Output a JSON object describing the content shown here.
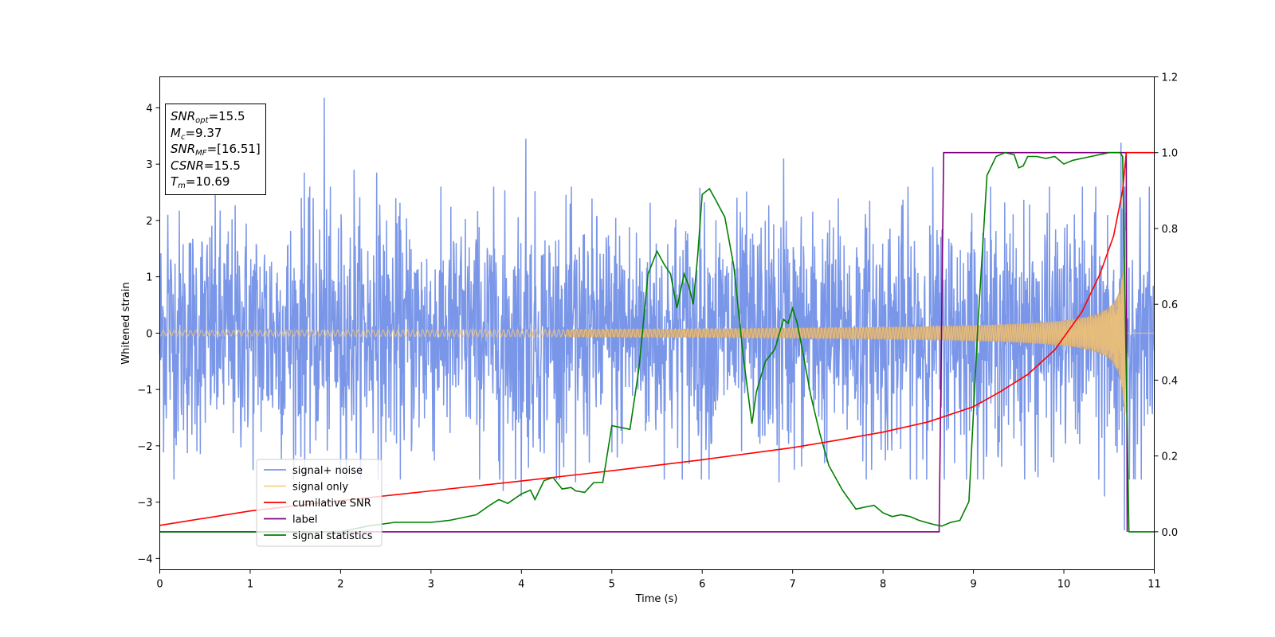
{
  "chart_data": {
    "type": "line",
    "xlabel": "Time (s)",
    "ylabel": "Whitened strain",
    "xlim": [
      0,
      11
    ],
    "ylim": [
      -4.2,
      4.55
    ],
    "y2lim": [
      -0.1,
      1.2
    ],
    "xticks": [
      0,
      1,
      2,
      3,
      4,
      5,
      6,
      7,
      8,
      9,
      10,
      11
    ],
    "yticks": [
      -4,
      -3,
      -2,
      -1,
      0,
      1,
      2,
      3,
      4
    ],
    "y2ticks": [
      "0.0",
      "0.2",
      "0.4",
      "0.6",
      "0.8",
      "1.0",
      "1.2"
    ],
    "legend_position": "lower-left",
    "colors": {
      "noise": "#6b8be6",
      "signal": "#f5c676",
      "csnr": "#ff0000",
      "label": "#800080",
      "stats": "#008000"
    },
    "series": [
      {
        "name": "signal+ noise",
        "axis": "left",
        "kind": "random-noise",
        "envelope": 1.0,
        "peaks": [
          {
            "x": 0.09,
            "y": -2.7
          },
          {
            "x": 0.09,
            "y": 2.1
          },
          {
            "x": 1.82,
            "y": 4.18
          },
          {
            "x": 1.6,
            "y": 2.85
          },
          {
            "x": 2.0,
            "y": -2.5
          },
          {
            "x": 2.15,
            "y": 2.9
          },
          {
            "x": 2.4,
            "y": 2.85
          },
          {
            "x": 3.8,
            "y": -2.8
          },
          {
            "x": 4.05,
            "y": 3.45
          },
          {
            "x": 4.0,
            "y": -2.9
          },
          {
            "x": 4.6,
            "y": -2.65
          },
          {
            "x": 6.9,
            "y": 3.1
          },
          {
            "x": 6.85,
            "y": -2.65
          },
          {
            "x": 8.55,
            "y": 2.95
          },
          {
            "x": 10.45,
            "y": -2.9
          },
          {
            "x": 10.63,
            "y": 3.38
          },
          {
            "x": 10.67,
            "y": -3.5
          }
        ]
      },
      {
        "name": "signal only",
        "axis": "left",
        "kind": "chirp",
        "coalescence_time": 10.69,
        "amplitude_start": 0.05,
        "amplitude_peak": 1.6
      },
      {
        "name": "cumilative SNR",
        "axis": "right",
        "x": [
          0,
          1,
          2,
          3,
          4,
          5,
          6,
          7,
          7.5,
          8,
          8.5,
          9,
          9.3,
          9.6,
          9.9,
          10.2,
          10.4,
          10.55,
          10.65,
          10.69,
          11
        ],
        "y": [
          0.017,
          0.055,
          0.082,
          0.108,
          0.134,
          0.161,
          0.19,
          0.222,
          0.242,
          0.263,
          0.29,
          0.33,
          0.37,
          0.415,
          0.48,
          0.58,
          0.68,
          0.78,
          0.9,
          1.0,
          1.0
        ]
      },
      {
        "name": "label",
        "axis": "right",
        "x": [
          0,
          8.62,
          8.67,
          10.69,
          10.7
        ],
        "y": [
          0.0,
          0.0,
          1.0,
          1.0,
          0.0
        ]
      },
      {
        "name": "signal statistics",
        "axis": "right",
        "x": [
          0,
          1,
          2,
          2.3,
          2.6,
          3,
          3.2,
          3.5,
          3.65,
          3.75,
          3.85,
          4.0,
          4.1,
          4.15,
          4.25,
          4.35,
          4.45,
          4.55,
          4.6,
          4.7,
          4.8,
          4.9,
          5.0,
          5.1,
          5.2,
          5.3,
          5.4,
          5.5,
          5.58,
          5.65,
          5.72,
          5.8,
          5.85,
          5.9,
          5.95,
          6.0,
          6.08,
          6.15,
          6.25,
          6.35,
          6.45,
          6.55,
          6.6,
          6.7,
          6.8,
          6.9,
          6.95,
          7.0,
          7.05,
          7.1,
          7.2,
          7.3,
          7.4,
          7.55,
          7.7,
          7.8,
          7.9,
          8.0,
          8.1,
          8.2,
          8.3,
          8.4,
          8.55,
          8.65,
          8.75,
          8.85,
          8.95,
          9.05,
          9.15,
          9.25,
          9.35,
          9.45,
          9.5,
          9.55,
          9.6,
          9.7,
          9.8,
          9.9,
          10.0,
          10.1,
          10.3,
          10.5,
          10.62,
          10.65,
          10.72,
          10.8,
          11
        ],
        "y": [
          0.0,
          0.0,
          0.0,
          0.015,
          0.025,
          0.025,
          0.03,
          0.045,
          0.07,
          0.085,
          0.075,
          0.1,
          0.11,
          0.085,
          0.135,
          0.143,
          0.113,
          0.117,
          0.108,
          0.104,
          0.13,
          0.13,
          0.28,
          0.275,
          0.27,
          0.43,
          0.68,
          0.74,
          0.705,
          0.68,
          0.59,
          0.68,
          0.65,
          0.6,
          0.73,
          0.89,
          0.905,
          0.875,
          0.83,
          0.7,
          0.47,
          0.285,
          0.37,
          0.45,
          0.48,
          0.56,
          0.55,
          0.59,
          0.55,
          0.49,
          0.36,
          0.26,
          0.175,
          0.11,
          0.06,
          0.065,
          0.07,
          0.05,
          0.04,
          0.045,
          0.04,
          0.03,
          0.02,
          0.015,
          0.025,
          0.03,
          0.08,
          0.55,
          0.94,
          0.99,
          1.0,
          0.995,
          0.96,
          0.965,
          0.99,
          0.99,
          0.985,
          0.99,
          0.97,
          0.98,
          0.99,
          1.0,
          1.0,
          0.99,
          0.0,
          0.0,
          0.0
        ]
      }
    ],
    "annotations": {
      "snr_opt": {
        "symbol": "SNR",
        "sub": "opt",
        "value": "=15.5"
      },
      "mc": {
        "symbol": "M",
        "sub": "c",
        "value": "=9.37"
      },
      "snr_mf": {
        "symbol": "SNR",
        "sub": "MF",
        "value": "=[16.51]"
      },
      "csnr": {
        "symbol": "CSNR",
        "value": "=15.5"
      },
      "tm": {
        "symbol": "T",
        "sub": "m",
        "value": "=10.69"
      }
    }
  }
}
